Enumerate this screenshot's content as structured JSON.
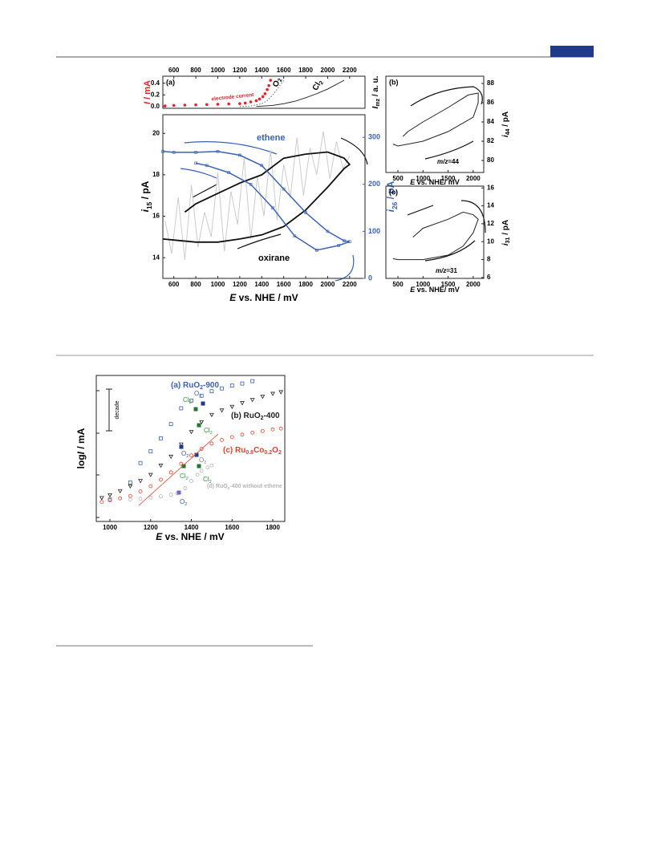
{
  "figure1": {
    "panel_a": {
      "label": "(a)",
      "y_label": [
        {
          "i": "I"
        },
        " / mA"
      ],
      "y2_label": [
        {
          "i": "I"
        },
        {
          "sub": "mz"
        },
        " / a. u."
      ],
      "xlim": [
        500,
        2340
      ],
      "xticks": [
        600,
        800,
        1000,
        1200,
        1400,
        1600,
        1800,
        2000,
        2200
      ],
      "ylim": [
        -0.03,
        0.52
      ],
      "yticks": [
        {
          "value": 0,
          "label": "0.0"
        },
        {
          "value": 0.2,
          "label": "0.2"
        },
        {
          "value": 0.4,
          "label": "0.4"
        }
      ],
      "series": [
        {
          "name": "electrode current",
          "color": "#e8202a",
          "style": "dots",
          "x": [
            520,
            600,
            700,
            800,
            900,
            1000,
            1100,
            1200,
            1250,
            1300,
            1350,
            1380,
            1410,
            1430,
            1450,
            1465,
            1480
          ],
          "values": [
            0.01,
            0.02,
            0.025,
            0.03,
            0.035,
            0.04,
            0.045,
            0.05,
            0.06,
            0.08,
            0.1,
            0.13,
            0.17,
            0.22,
            0.29,
            0.36,
            0.45
          ]
        },
        {
          "color": "#666666",
          "style": "dotted",
          "x": [
            1200,
            1300,
            1400,
            1450,
            1500,
            1550,
            1600
          ],
          "values": [
            0,
            0.01,
            0.05,
            0.1,
            0.2,
            0.32,
            0.45
          ]
        },
        {
          "color": "#333333",
          "style": "solid",
          "x": [
            1350,
            1500,
            1600,
            1700,
            1800,
            1900,
            2000,
            2100,
            2150
          ],
          "values": [
            0,
            0.02,
            0.05,
            0.09,
            0.15,
            0.22,
            0.3,
            0.4,
            0.45
          ]
        }
      ],
      "annotations": [
        [
          "O",
          {
            "sub": "2"
          }
        ],
        [
          "Cl",
          {
            "sub": "2"
          }
        ]
      ]
    },
    "main": {
      "x_label": [
        {
          "i": "E"
        },
        " vs. NHE / mV"
      ],
      "y_label": [
        {
          "i": "i"
        },
        {
          "sub": "15"
        },
        " / pA"
      ],
      "y2_label": [
        {
          "i": "i"
        },
        {
          "sub": "26"
        },
        " / pA"
      ],
      "xlim": [
        500,
        2340
      ],
      "xticks": [
        600,
        800,
        1000,
        1200,
        1400,
        1600,
        1800,
        2000,
        2200
      ],
      "ylim": [
        13,
        20.9
      ],
      "yticks": [
        14,
        16,
        18,
        20
      ],
      "y2lim": [
        0,
        348
      ],
      "y2ticks": [
        0,
        100,
        200,
        300
      ],
      "series": [
        {
          "color": "#cccccc",
          "style": "solid",
          "x": [
            520,
            580,
            640,
            700,
            760,
            820,
            880,
            940,
            1000,
            1060,
            1120,
            1180,
            1240,
            1300,
            1360,
            1420,
            1480,
            1540,
            1600,
            1660,
            1720,
            1780,
            1840,
            1900,
            1960,
            2020,
            2080,
            2140,
            2200
          ],
          "values": [
            15.8,
            14.2,
            16.9,
            13.9,
            17.5,
            14.5,
            16.2,
            15.0,
            18.1,
            14.3,
            17.2,
            15.6,
            18.8,
            14.9,
            17.9,
            16.0,
            19.2,
            15.8,
            18.5,
            16.9,
            19.8,
            17.0,
            19.3,
            18.0,
            20.1,
            17.8,
            19.6,
            18.3,
            18.9
          ]
        },
        {
          "color": "#111111",
          "style": "thick",
          "x": [
            500,
            600,
            800,
            1000,
            1200,
            1400,
            1600,
            1800,
            2000,
            2150,
            2200,
            2150,
            2000,
            1800,
            1600,
            1400,
            1200,
            1000,
            800,
            700
          ],
          "values": [
            14.9,
            14.85,
            14.75,
            14.75,
            14.9,
            15.1,
            15.5,
            16.3,
            17.4,
            18.3,
            18.5,
            18.8,
            19.1,
            19.0,
            18.8,
            18.0,
            17.6,
            17.1,
            16.6,
            16.2
          ]
        },
        {
          "color": "#3a62b5",
          "style": "line-markers",
          "axis": "y2",
          "x": [
            500,
            600,
            800,
            1000,
            1200,
            1400,
            1600,
            1800,
            2000,
            2150,
            2200,
            2100,
            1900,
            1700,
            1500,
            1300,
            1100,
            900,
            800
          ],
          "values": [
            270,
            268,
            268,
            270,
            262,
            240,
            190,
            140,
            100,
            80,
            78,
            70,
            60,
            90,
            150,
            200,
            225,
            240,
            245
          ]
        }
      ],
      "annotations": [
        "ethene",
        "oxirane"
      ]
    },
    "panel_b": {
      "label": "(b)",
      "x_label": [
        {
          "i": "E"
        },
        " vs. NHE/ mV"
      ],
      "y_label": [
        {
          "i": "i"
        },
        {
          "sub": "44"
        },
        " / pA"
      ],
      "xlim": [
        260,
        2210
      ],
      "xticks": [
        500,
        1000,
        1500,
        2000
      ],
      "ylim": [
        78.75,
        88.75
      ],
      "yticks": [
        80,
        82,
        84,
        86,
        88
      ],
      "series": [
        {
          "color": "#222222",
          "style": "solid",
          "x": [
            400,
            500,
            1000,
            1500,
            2000,
            2100,
            2100,
            1900,
            1500,
            1000,
            700,
            600
          ],
          "values": [
            81.7,
            81.5,
            82,
            83,
            84.5,
            86,
            87,
            86.8,
            85.5,
            84,
            83,
            82.5
          ]
        }
      ],
      "annotations": [
        [
          {
            "i": "m/z"
          },
          "=44"
        ]
      ]
    },
    "panel_c": {
      "label": "(c)",
      "x_label": [
        {
          "i": "E"
        },
        " vs. NHE/ mV"
      ],
      "y_label": [
        {
          "i": "i"
        },
        {
          "sub": "31"
        },
        " / pA"
      ],
      "xlim": [
        260,
        2210
      ],
      "xticks": [
        500,
        1000,
        1500,
        2000
      ],
      "ylim": [
        5.9,
        16.2
      ],
      "yticks": [
        6,
        8,
        10,
        12,
        14,
        16
      ],
      "series": [
        {
          "color": "#222222",
          "style": "solid",
          "x": [
            400,
            500,
            1000,
            1500,
            1800,
            2000,
            2100,
            2000,
            1800,
            1500,
            1000,
            800
          ],
          "values": [
            8.1,
            8,
            8,
            8.5,
            9.5,
            11,
            12.5,
            13,
            13.3,
            12.5,
            11.5,
            10.5
          ]
        }
      ],
      "annotations": [
        [
          {
            "i": "m/z"
          },
          "=31"
        ]
      ]
    }
  },
  "figure2": {
    "x_label": [
      {
        "i": "E"
      },
      " vs. NHE / mV"
    ],
    "y_label": [
      "log",
      {
        "i": "I"
      },
      " / mA"
    ],
    "decade": "decade",
    "xlim": [
      933,
      1859
    ],
    "xticks": [
      1000,
      1200,
      1400,
      1600,
      1800
    ],
    "ylim": [
      0,
      3.6
    ],
    "series": [
      {
        "name": [
          "(a) RuO",
          {
            "sub": "2"
          },
          "-900"
        ],
        "color": "#3a62b5",
        "marker": "square",
        "x": [
          1000,
          1100,
          1150,
          1200,
          1250,
          1300,
          1350,
          1400,
          1450,
          1500,
          1550,
          1600,
          1650,
          1700
        ],
        "values": [
          0.54,
          0.96,
          1.44,
          1.73,
          2.05,
          2.4,
          2.79,
          2.98,
          3.1,
          3.21,
          3.28,
          3.35,
          3.4,
          3.46
        ]
      },
      {
        "name": [
          "(b) RuO",
          {
            "sub": "2"
          },
          "-400"
        ],
        "color": "#222222",
        "marker": "triangle",
        "x": [
          960,
          1000,
          1050,
          1100,
          1150,
          1200,
          1250,
          1300,
          1350,
          1400,
          1450,
          1500,
          1550,
          1600,
          1650,
          1700,
          1750,
          1800,
          1840
        ],
        "values": [
          0.58,
          0.65,
          0.75,
          0.87,
          1.0,
          1.15,
          1.38,
          1.6,
          1.9,
          2.21,
          2.45,
          2.63,
          2.74,
          2.83,
          2.92,
          3.0,
          3.08,
          3.15,
          3.19
        ]
      },
      {
        "name": [
          "(c) Ru",
          {
            "sub": "0.8"
          },
          "Co",
          {
            "sub": "0.2"
          },
          "O",
          {
            "sub": "2"
          }
        ],
        "color": "#e8402a",
        "marker": "circle",
        "x": [
          960,
          1000,
          1050,
          1100,
          1150,
          1200,
          1250,
          1300,
          1350,
          1400,
          1450,
          1500,
          1550,
          1600,
          1650,
          1700,
          1750,
          1800,
          1840
        ],
        "values": [
          0.48,
          0.52,
          0.57,
          0.63,
          0.74,
          0.87,
          1.03,
          1.21,
          1.42,
          1.63,
          1.79,
          1.92,
          2.01,
          2.08,
          2.14,
          2.19,
          2.23,
          2.27,
          2.29
        ]
      },
      {
        "name": [
          "(d) RuO",
          {
            "sub": "2"
          },
          "-400 without ethene"
        ],
        "color": "#b5b5b5",
        "marker": "circle",
        "x": [
          1100,
          1150,
          1200,
          1250,
          1300,
          1330,
          1370,
          1400,
          1430,
          1450,
          1480,
          1500
        ],
        "values": [
          0.54,
          0.56,
          0.59,
          0.62,
          0.66,
          0.69,
          0.82,
          1.0,
          1.15,
          1.25,
          1.33,
          1.38
        ]
      }
    ],
    "annotations": [
      [
        "O",
        {
          "sub": "2"
        }
      ],
      [
        "Cl",
        {
          "sub": "2"
        }
      ],
      [
        "Cl",
        {
          "sub": "2"
        }
      ],
      [
        "O",
        {
          "sub": "2"
        }
      ],
      [
        "Cl",
        {
          "sub": "2"
        }
      ],
      [
        "O",
        {
          "sub": "2"
        }
      ],
      [
        "Cl",
        {
          "sub": "2"
        }
      ],
      [
        "O",
        {
          "sub": "2"
        }
      ]
    ]
  }
}
